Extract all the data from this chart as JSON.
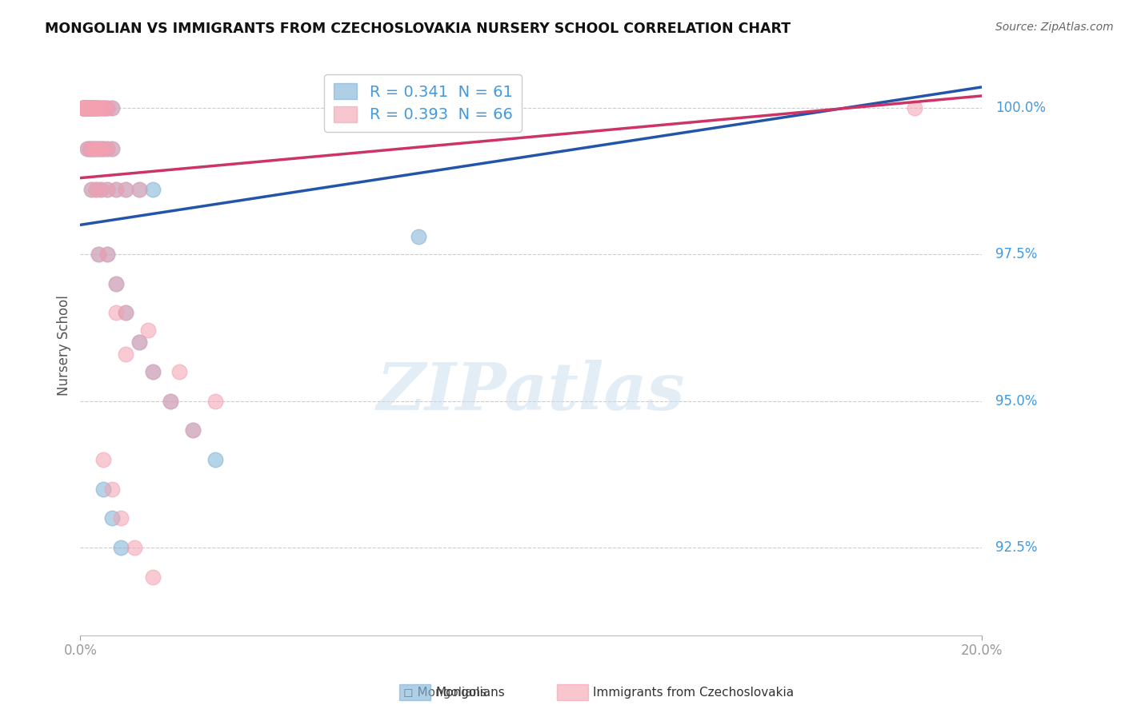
{
  "title": "MONGOLIAN VS IMMIGRANTS FROM CZECHOSLOVAKIA NURSERY SCHOOL CORRELATION CHART",
  "source": "Source: ZipAtlas.com",
  "ylabel": "Nursery School",
  "y_tick_vals": [
    92.5,
    95.0,
    97.5,
    100.0
  ],
  "y_tick_labels": [
    "92.5%",
    "95.0%",
    "97.5%",
    "100.0%"
  ],
  "xlim": [
    0.0,
    20.0
  ],
  "ylim": [
    91.0,
    100.9
  ],
  "blue_R": "0.341",
  "blue_N": "61",
  "pink_R": "0.393",
  "pink_N": "66",
  "blue_color": "#7BAFD4",
  "pink_color": "#F4A0B0",
  "blue_line_color": "#2255AA",
  "pink_line_color": "#CC3366",
  "tick_color": "#4499DD",
  "blue_x": [
    0.05,
    0.06,
    0.07,
    0.08,
    0.09,
    0.1,
    0.11,
    0.12,
    0.13,
    0.14,
    0.15,
    0.16,
    0.17,
    0.18,
    0.19,
    0.2,
    0.22,
    0.24,
    0.26,
    0.28,
    0.3,
    0.32,
    0.35,
    0.38,
    0.4,
    0.45,
    0.5,
    0.55,
    0.6,
    0.7,
    0.15,
    0.2,
    0.25,
    0.3,
    0.35,
    0.4,
    0.45,
    0.5,
    0.6,
    0.7,
    0.25,
    0.35,
    0.45,
    0.6,
    0.8,
    1.0,
    1.3,
    1.6,
    0.4,
    0.6,
    0.8,
    1.0,
    1.3,
    1.6,
    2.0,
    2.5,
    3.0,
    0.5,
    0.7,
    0.9,
    7.5
  ],
  "blue_y": [
    100.0,
    100.0,
    100.0,
    100.0,
    100.0,
    100.0,
    100.0,
    100.0,
    100.0,
    100.0,
    100.0,
    100.0,
    100.0,
    100.0,
    100.0,
    100.0,
    100.0,
    100.0,
    100.0,
    100.0,
    100.0,
    100.0,
    100.0,
    100.0,
    100.0,
    100.0,
    100.0,
    100.0,
    100.0,
    100.0,
    99.3,
    99.3,
    99.3,
    99.3,
    99.3,
    99.3,
    99.3,
    99.3,
    99.3,
    99.3,
    98.6,
    98.6,
    98.6,
    98.6,
    98.6,
    98.6,
    98.6,
    98.6,
    97.5,
    97.5,
    97.0,
    96.5,
    96.0,
    95.5,
    95.0,
    94.5,
    94.0,
    93.5,
    93.0,
    92.5,
    97.8
  ],
  "pink_x": [
    0.05,
    0.06,
    0.07,
    0.08,
    0.09,
    0.1,
    0.11,
    0.12,
    0.13,
    0.14,
    0.15,
    0.16,
    0.17,
    0.18,
    0.19,
    0.2,
    0.22,
    0.24,
    0.26,
    0.28,
    0.3,
    0.32,
    0.35,
    0.38,
    0.4,
    0.45,
    0.5,
    0.55,
    0.6,
    0.7,
    0.15,
    0.2,
    0.25,
    0.3,
    0.35,
    0.4,
    0.45,
    0.5,
    0.6,
    0.7,
    0.25,
    0.35,
    0.45,
    0.6,
    0.8,
    1.0,
    1.3,
    0.4,
    0.6,
    0.8,
    1.0,
    1.3,
    1.6,
    2.0,
    2.5,
    0.5,
    0.7,
    0.9,
    1.2,
    1.6,
    2.2,
    3.0,
    18.5,
    0.8,
    1.0,
    1.5
  ],
  "pink_y": [
    100.0,
    100.0,
    100.0,
    100.0,
    100.0,
    100.0,
    100.0,
    100.0,
    100.0,
    100.0,
    100.0,
    100.0,
    100.0,
    100.0,
    100.0,
    100.0,
    100.0,
    100.0,
    100.0,
    100.0,
    100.0,
    100.0,
    100.0,
    100.0,
    100.0,
    100.0,
    100.0,
    100.0,
    100.0,
    100.0,
    99.3,
    99.3,
    99.3,
    99.3,
    99.3,
    99.3,
    99.3,
    99.3,
    99.3,
    99.3,
    98.6,
    98.6,
    98.6,
    98.6,
    98.6,
    98.6,
    98.6,
    97.5,
    97.5,
    97.0,
    96.5,
    96.0,
    95.5,
    95.0,
    94.5,
    94.0,
    93.5,
    93.0,
    92.5,
    92.0,
    95.5,
    95.0,
    100.0,
    96.5,
    95.8,
    96.2
  ]
}
